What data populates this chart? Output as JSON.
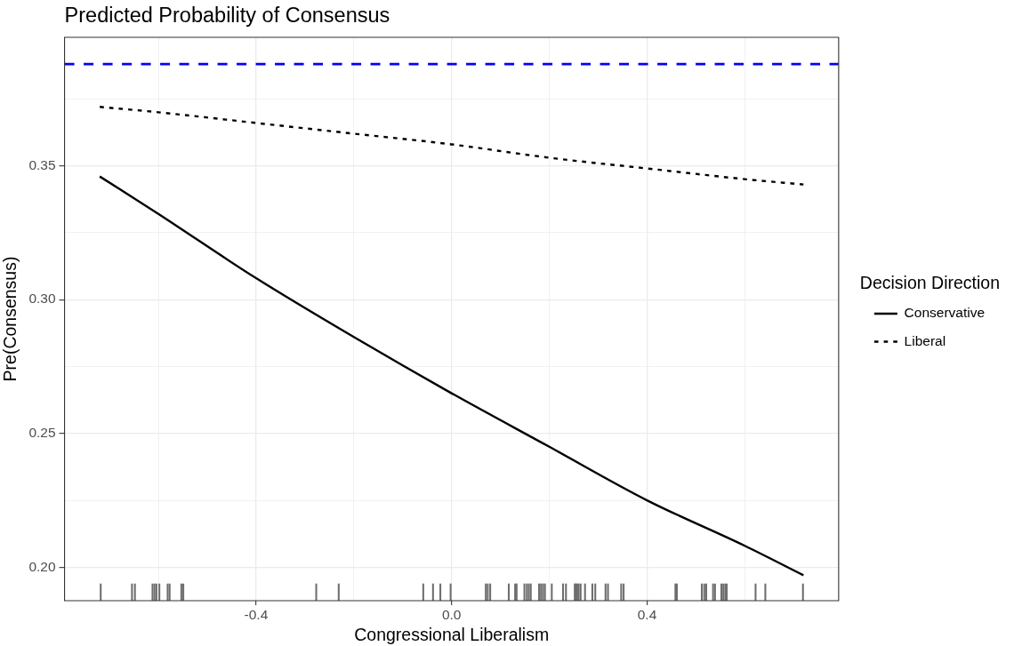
{
  "chart_data": {
    "type": "line",
    "title": "Predicted Probability of Consensus",
    "xlabel": "Congressional Liberalism",
    "ylabel": "Pre(Consensus)",
    "legend_title": "Decision Direction",
    "x": [
      -0.72,
      -0.6,
      -0.4,
      -0.2,
      0,
      0.2,
      0.4,
      0.6,
      0.72
    ],
    "series": [
      {
        "name": "Conservative",
        "color": "#000000",
        "line_style": "solid",
        "values": [
          0.346,
          0.332,
          0.308,
          0.286,
          0.265,
          0.245,
          0.225,
          0.208,
          0.197
        ]
      },
      {
        "name": "Liberal",
        "color": "#000000",
        "line_style": "dashed",
        "values": [
          0.372,
          0.37,
          0.366,
          0.362,
          0.358,
          0.353,
          0.349,
          0.345,
          0.343
        ]
      },
      {
        "type": "bar",
        "color": "#6e6e6e",
        "x": [
          -0.718,
          -0.654,
          -0.648,
          -0.612,
          -0.608,
          -0.604,
          -0.598,
          -0.581,
          -0.577,
          -0.553,
          -0.549,
          -0.277,
          -0.231,
          -0.058,
          -0.038,
          -0.023,
          -0.002,
          0.07,
          0.074,
          0.079,
          0.117,
          0.13,
          0.133,
          0.149,
          0.154,
          0.158,
          0.162,
          0.179,
          0.183,
          0.187,
          0.191,
          0.205,
          0.228,
          0.234,
          0.252,
          0.254,
          0.257,
          0.26,
          0.264,
          0.273,
          0.288,
          0.294,
          0.315,
          0.32,
          0.347,
          0.352,
          0.458,
          0.461,
          0.512,
          0.517,
          0.521,
          0.535,
          0.539,
          0.552,
          0.556,
          0.56,
          0.563,
          0.622,
          0.642,
          0.719
        ],
        "base": [
          0.1875,
          0.1875,
          0.1875,
          0.1875,
          0.1875,
          0.1875,
          0.1875,
          0.1875,
          0.1875,
          0.1875,
          0.1875,
          0.1875,
          0.1875,
          0.1875,
          0.1875,
          0.1875,
          0.1875,
          0.1875,
          0.1875,
          0.1875,
          0.1875,
          0.1875,
          0.1875,
          0.1875,
          0.1875,
          0.1875,
          0.1875,
          0.1875,
          0.1875,
          0.1875,
          0.1875,
          0.1875,
          0.1875,
          0.1875,
          0.1875,
          0.1875,
          0.1875,
          0.1875,
          0.1875,
          0.1875,
          0.1875,
          0.1875,
          0.1875,
          0.1875,
          0.1875,
          0.1875,
          0.1875,
          0.1875,
          0.1875,
          0.1875,
          0.1875,
          0.1875,
          0.1875,
          0.1875,
          0.1875,
          0.1875,
          0.1875,
          0.1875,
          0.1875,
          0.1875
        ],
        "values": [
          0.0063,
          0.0063,
          0.0063,
          0.0063,
          0.0063,
          0.0063,
          0.0063,
          0.0063,
          0.0063,
          0.0063,
          0.0063,
          0.0063,
          0.0063,
          0.0063,
          0.0063,
          0.0063,
          0.0063,
          0.0063,
          0.0063,
          0.0063,
          0.0063,
          0.0063,
          0.0063,
          0.0063,
          0.0063,
          0.0063,
          0.0063,
          0.0063,
          0.0063,
          0.0063,
          0.0063,
          0.0063,
          0.0063,
          0.0063,
          0.0063,
          0.0063,
          0.0063,
          0.0063,
          0.0063,
          0.0063,
          0.0063,
          0.0063,
          0.0063,
          0.0063,
          0.0063,
          0.0063,
          0.0063,
          0.0063,
          0.0063,
          0.0063,
          0.0063,
          0.0063,
          0.0063,
          0.0063,
          0.0063,
          0.0063,
          0.0063,
          0.0063,
          0.0063,
          0.0063
        ]
      }
    ],
    "xlim": [
      -0.792,
      0.792
    ],
    "xticks": [
      {
        "value": -0.6,
        "label": null
      },
      -0.4,
      {
        "value": -0.2,
        "label": null
      },
      {
        "value": 0,
        "label": "0.0"
      },
      {
        "value": 0.2,
        "label": null
      },
      0.4,
      {
        "value": 0.6,
        "label": null
      }
    ],
    "ylim": [
      0.1875,
      0.398
    ],
    "yticks": [
      {
        "value": 0.2,
        "label": "0.20"
      },
      {
        "value": 0.225,
        "label": null
      },
      {
        "value": 0.25,
        "label": "0.25"
      },
      {
        "value": 0.275,
        "label": null
      },
      {
        "value": 0.3,
        "label": "0.30"
      },
      {
        "value": 0.325,
        "label": null
      },
      {
        "value": 0.35,
        "label": "0.35"
      },
      {
        "value": 0.375,
        "label": null
      }
    ],
    "ref_lines": [
      {
        "axis": "y",
        "value": 0.388,
        "color": "#0000ff",
        "line_style": "dashed"
      }
    ],
    "grid": true,
    "legend": "right",
    "marker": "none"
  }
}
